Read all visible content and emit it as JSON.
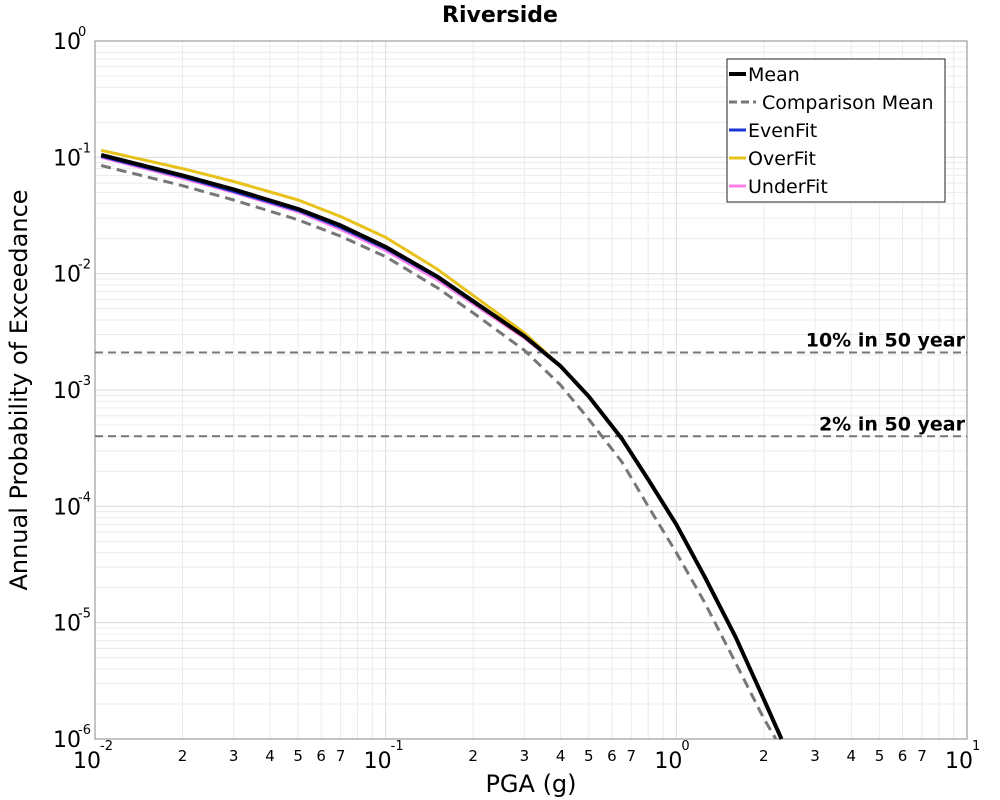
{
  "chart_data": {
    "type": "line",
    "title": "Riverside",
    "xlabel": "PGA (g)",
    "ylabel": "Annual Probability of Exceedance",
    "x_scale": "log",
    "y_scale": "log",
    "xlim": [
      0.01,
      10
    ],
    "ylim": [
      1e-06,
      1
    ],
    "grid": true,
    "legend_position": "top-right",
    "x_major_ticks": [
      {
        "value": 0.01,
        "base": "10",
        "exp": "-2"
      },
      {
        "value": 0.1,
        "base": "10",
        "exp": "-1"
      },
      {
        "value": 1,
        "base": "10",
        "exp": "0"
      },
      {
        "value": 10,
        "base": "10",
        "exp": "1"
      }
    ],
    "y_major_ticks": [
      {
        "value": 1,
        "base": "10",
        "exp": "0"
      },
      {
        "value": 0.1,
        "base": "10",
        "exp": "-1"
      },
      {
        "value": 0.01,
        "base": "10",
        "exp": "-2"
      },
      {
        "value": 0.001,
        "base": "10",
        "exp": "-3"
      },
      {
        "value": 0.0001,
        "base": "10",
        "exp": "-4"
      },
      {
        "value": 1e-05,
        "base": "10",
        "exp": "-5"
      },
      {
        "value": 1e-06,
        "base": "10",
        "exp": "-6"
      }
    ],
    "x_minor_tick_labels": [
      "2",
      "3",
      "4",
      "5",
      "6",
      "7"
    ],
    "series": [
      {
        "name": "Mean",
        "color": "#000000",
        "dash": "solid",
        "x": [
          0.0105,
          0.02,
          0.03,
          0.05,
          0.07,
          0.1,
          0.15,
          0.2,
          0.3,
          0.4,
          0.5,
          0.65,
          0.8,
          1.0,
          1.25,
          1.6,
          2.0,
          2.3
        ],
        "y": [
          0.105,
          0.07,
          0.053,
          0.036,
          0.026,
          0.017,
          0.0095,
          0.0058,
          0.0029,
          0.0016,
          0.00088,
          0.00038,
          0.00017,
          7e-05,
          2.5e-05,
          7.5e-06,
          2.2e-06,
          1e-06
        ]
      },
      {
        "name": "Comparison Mean",
        "color": "#777777",
        "dash": "dashed",
        "x": [
          0.0105,
          0.02,
          0.03,
          0.05,
          0.07,
          0.1,
          0.15,
          0.2,
          0.3,
          0.4,
          0.5,
          0.65,
          0.8,
          1.0,
          1.25,
          1.6,
          2.0,
          2.2
        ],
        "y": [
          0.085,
          0.057,
          0.043,
          0.029,
          0.021,
          0.014,
          0.0076,
          0.0046,
          0.0022,
          0.0011,
          0.00056,
          0.00024,
          0.0001,
          4e-05,
          1.5e-05,
          4.5e-06,
          1.5e-06,
          1e-06
        ]
      },
      {
        "name": "EvenFit",
        "color": "#1a35d9",
        "dash": "solid",
        "x": [
          0.0105,
          0.02,
          0.03,
          0.05,
          0.07,
          0.1,
          0.15,
          0.2,
          0.3,
          0.4
        ],
        "y": [
          0.102,
          0.068,
          0.051,
          0.035,
          0.025,
          0.0165,
          0.0093,
          0.0057,
          0.0029,
          0.0016
        ]
      },
      {
        "name": "OverFit",
        "color": "#e8c21a",
        "dash": "solid",
        "x": [
          0.0105,
          0.02,
          0.03,
          0.05,
          0.07,
          0.1,
          0.15,
          0.2,
          0.3,
          0.4
        ],
        "y": [
          0.115,
          0.08,
          0.062,
          0.043,
          0.031,
          0.0205,
          0.011,
          0.0065,
          0.0031,
          0.0016
        ]
      },
      {
        "name": "UnderFit",
        "color": "#ff80e6",
        "dash": "solid",
        "x": [
          0.0105,
          0.02,
          0.03,
          0.05,
          0.07,
          0.1,
          0.15,
          0.2,
          0.3,
          0.4
        ],
        "y": [
          0.1,
          0.066,
          0.05,
          0.034,
          0.024,
          0.0158,
          0.0089,
          0.0055,
          0.0028,
          0.0016
        ]
      }
    ],
    "reference_lines": [
      {
        "label": "10% in 50 year",
        "y": 0.0021
      },
      {
        "label": "2% in 50 year",
        "y": 0.0004
      }
    ]
  }
}
